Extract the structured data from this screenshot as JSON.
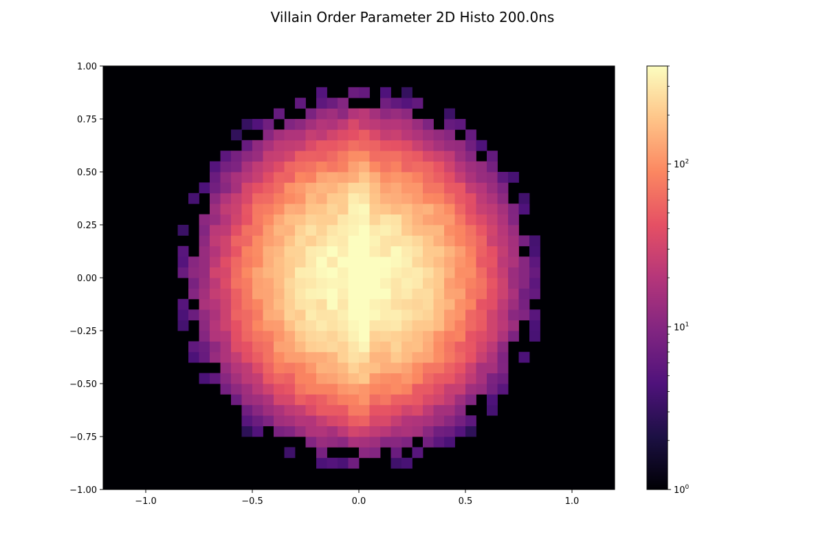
{
  "chart_data": {
    "type": "heatmap",
    "title": "Villain Order Parameter 2D Histo 200.0ns",
    "xlabel": "",
    "ylabel": "",
    "xlim": [
      -1.2,
      1.2
    ],
    "ylim": [
      -1.0,
      1.0
    ],
    "x_ticks": [
      -1.0,
      -0.5,
      0.0,
      0.5,
      1.0
    ],
    "x_tick_labels": [
      "−1.0",
      "−0.5",
      "0.0",
      "0.5",
      "1.0"
    ],
    "y_ticks": [
      -1.0,
      -0.75,
      -0.5,
      -0.25,
      0.0,
      0.25,
      0.5,
      0.75,
      1.0
    ],
    "y_tick_labels": [
      "−1.00",
      "−0.75",
      "−0.50",
      "−0.25",
      "0.00",
      "0.25",
      "0.50",
      "0.75",
      "1.00"
    ],
    "x_bins": {
      "start": -1.2,
      "stop": 1.2,
      "count": 48
    },
    "y_bins": {
      "start": -1.0,
      "stop": 1.0,
      "count": 40
    },
    "distribution": "approximately circular blob centered at (0, 0), radius ~0.8, peak counts ~400 near center with a bright vertical streak at x = 0",
    "peak_count": 400,
    "colorbar": {
      "scale": "log",
      "colormap": "magma",
      "range": [
        1,
        400
      ],
      "ticks": [
        1,
        10,
        100
      ],
      "tick_labels": [
        {
          "base": "10",
          "exp": "0"
        },
        {
          "base": "10",
          "exp": "1"
        },
        {
          "base": "10",
          "exp": "2"
        }
      ]
    },
    "colormap_stops": [
      "#000004",
      "#1c1044",
      "#4f127b",
      "#812581",
      "#b5367a",
      "#e55064",
      "#fb8761",
      "#fec488",
      "#fcfdbf"
    ],
    "grid": false
  }
}
